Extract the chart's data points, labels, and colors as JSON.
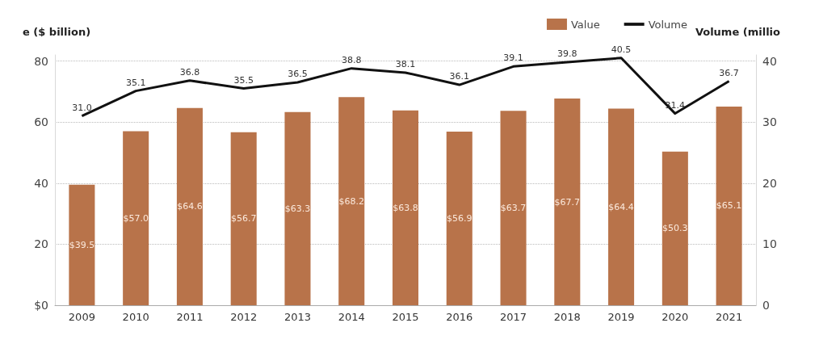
{
  "chart_data": {
    "type": "bar",
    "ylabel": "e ($ billion)",
    "y2label": "Volume (millio",
    "categories": [
      "2009",
      "2010",
      "2011",
      "2012",
      "2013",
      "2014",
      "2015",
      "2016",
      "2017",
      "2018",
      "2019",
      "2020",
      "2021"
    ],
    "series": [
      {
        "name": "Value",
        "color": "#b8734a",
        "values": [
          39.5,
          57.0,
          64.6,
          56.7,
          63.3,
          68.2,
          63.8,
          56.9,
          63.7,
          67.7,
          64.4,
          50.3,
          65.1
        ],
        "value_labels": [
          "$39.5",
          "$57.0",
          "$64.6",
          "$56.7",
          "$63.3",
          "$68.2",
          "$63.8",
          "$56.9",
          "$63.7",
          "$67.7",
          "$64.4",
          "$50.3",
          "$65.1"
        ]
      },
      {
        "name": "Volume",
        "type": "line",
        "axis": "y2",
        "color": "#111111",
        "values": [
          31.0,
          35.1,
          36.8,
          35.5,
          36.5,
          38.8,
          38.1,
          36.1,
          39.1,
          39.8,
          40.5,
          31.4,
          36.7
        ],
        "value_labels": [
          "31.0",
          "35.1",
          "36.8",
          "35.5",
          "36.5",
          "38.8",
          "38.1",
          "36.1",
          "39.1",
          "39.8",
          "40.5",
          "31.4",
          "36.7"
        ]
      }
    ],
    "ylim": [
      0,
      82
    ],
    "yticks": [
      {
        "value": 0,
        "label": "$0"
      },
      20,
      40,
      60,
      80
    ],
    "y2lim": [
      0,
      41
    ],
    "y2ticks": [
      0,
      10,
      20,
      30,
      40
    ],
    "grid": "y",
    "legend": "top right",
    "marker": "none",
    "line_style": "solid"
  }
}
